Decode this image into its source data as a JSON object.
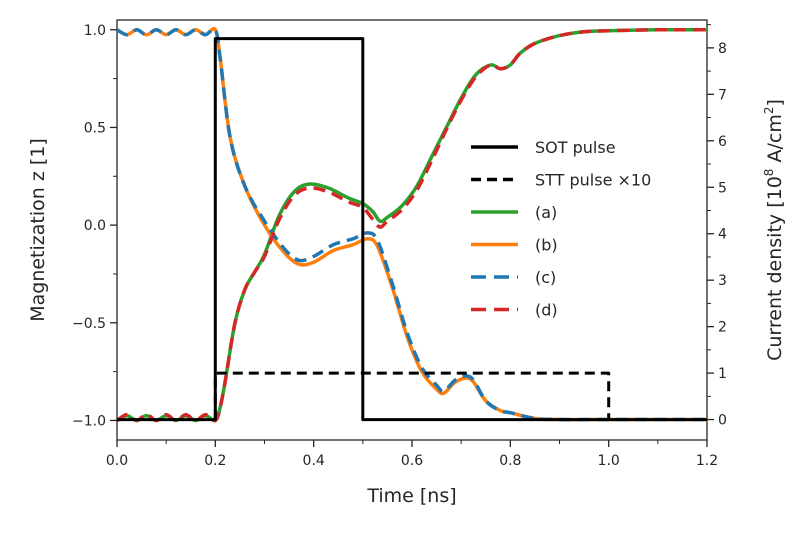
{
  "chart_data": {
    "type": "line",
    "xlabel": "Time [ns]",
    "ylabel_left": "Magnetization z [1]",
    "ylabel_right_prefix": "Current density [10",
    "ylabel_right_exp1": "8",
    "ylabel_right_mid": " A/cm",
    "ylabel_right_exp2": "2",
    "ylabel_right_suffix": "]",
    "xlim": [
      0.0,
      1.2
    ],
    "ylim_left": [
      -1.1,
      1.05
    ],
    "ylim_right": [
      -0.44,
      8.6
    ],
    "x_ticks": [
      "0.0",
      "0.2",
      "0.4",
      "0.6",
      "0.8",
      "1.0",
      "1.2"
    ],
    "x_tick_values": [
      0.0,
      0.2,
      0.4,
      0.6,
      0.8,
      1.0,
      1.2
    ],
    "y_left_ticks": [
      "1.0",
      "0.5",
      "0.0",
      "−0.5",
      "−1.0"
    ],
    "y_left_tick_values": [
      1.0,
      0.5,
      0.0,
      -0.5,
      -1.0
    ],
    "y_right_ticks": [
      "8",
      "7",
      "6",
      "5",
      "4",
      "3",
      "2",
      "1",
      "0"
    ],
    "y_right_tick_values": [
      8,
      7,
      6,
      5,
      4,
      3,
      2,
      1,
      0
    ],
    "grid": false,
    "legend_position": "center-right",
    "series": [
      {
        "name": "SOT pulse",
        "axis": "right",
        "color": "#000000",
        "style": "solid",
        "x": [
          0.0,
          0.2,
          0.2,
          0.5,
          0.5,
          1.2
        ],
        "y": [
          0,
          0,
          8.2,
          8.2,
          0,
          0
        ]
      },
      {
        "name": "STT pulse ×10",
        "axis": "right",
        "color": "#000000",
        "style": "dashed",
        "x": [
          0.2,
          0.2,
          1.0,
          1.0
        ],
        "y": [
          0,
          1.0,
          1.0,
          0
        ]
      },
      {
        "name": "(a)",
        "axis": "left",
        "color": "#2ca02c",
        "style": "solid",
        "x": [
          0.0,
          0.02,
          0.04,
          0.06,
          0.08,
          0.1,
          0.12,
          0.14,
          0.16,
          0.18,
          0.2,
          0.21,
          0.22,
          0.24,
          0.26,
          0.28,
          0.3,
          0.33,
          0.36,
          0.39,
          0.43,
          0.47,
          0.5,
          0.52,
          0.535,
          0.55,
          0.58,
          0.61,
          0.64,
          0.67,
          0.7,
          0.73,
          0.76,
          0.78,
          0.8,
          0.82,
          0.85,
          0.9,
          0.95,
          1.0,
          1.1,
          1.2
        ],
        "y": [
          -1.0,
          -0.975,
          -1.0,
          -0.975,
          -1.0,
          -0.975,
          -1.0,
          -0.975,
          -1.0,
          -0.975,
          -1.0,
          -0.93,
          -0.8,
          -0.5,
          -0.33,
          -0.24,
          -0.15,
          0.05,
          0.17,
          0.21,
          0.19,
          0.14,
          0.11,
          0.07,
          0.02,
          0.04,
          0.1,
          0.2,
          0.35,
          0.5,
          0.65,
          0.77,
          0.82,
          0.8,
          0.82,
          0.88,
          0.93,
          0.97,
          0.99,
          0.995,
          1.0,
          1.0
        ]
      },
      {
        "name": "(b)",
        "axis": "left",
        "color": "#ff7f0e",
        "style": "solid",
        "x": [
          0.0,
          0.02,
          0.04,
          0.06,
          0.08,
          0.1,
          0.12,
          0.14,
          0.16,
          0.18,
          0.2,
          0.21,
          0.23,
          0.26,
          0.3,
          0.34,
          0.37,
          0.4,
          0.44,
          0.48,
          0.51,
          0.53,
          0.56,
          0.59,
          0.62,
          0.65,
          0.665,
          0.69,
          0.72,
          0.75,
          0.78,
          0.8,
          0.85,
          0.9,
          1.0,
          1.2
        ],
        "y": [
          1.0,
          0.975,
          1.0,
          0.975,
          1.0,
          0.975,
          1.0,
          0.975,
          1.0,
          0.975,
          1.0,
          0.85,
          0.45,
          0.2,
          0.0,
          -0.14,
          -0.2,
          -0.19,
          -0.13,
          -0.1,
          -0.07,
          -0.11,
          -0.32,
          -0.57,
          -0.75,
          -0.84,
          -0.86,
          -0.8,
          -0.79,
          -0.9,
          -0.95,
          -0.96,
          -0.99,
          -0.995,
          -0.995,
          -0.995
        ]
      },
      {
        "name": "(c)",
        "axis": "left",
        "color": "#1f77b4",
        "style": "dashed",
        "x": [
          0.0,
          0.02,
          0.04,
          0.06,
          0.08,
          0.1,
          0.12,
          0.14,
          0.16,
          0.18,
          0.2,
          0.21,
          0.23,
          0.26,
          0.3,
          0.34,
          0.37,
          0.4,
          0.44,
          0.48,
          0.51,
          0.53,
          0.56,
          0.59,
          0.62,
          0.65,
          0.665,
          0.69,
          0.72,
          0.75,
          0.78,
          0.8,
          0.85,
          0.9,
          1.0,
          1.2
        ],
        "y": [
          1.0,
          0.975,
          1.0,
          0.975,
          1.0,
          0.975,
          1.0,
          0.975,
          1.0,
          0.975,
          1.0,
          0.85,
          0.45,
          0.2,
          0.02,
          -0.12,
          -0.18,
          -0.16,
          -0.1,
          -0.07,
          -0.04,
          -0.08,
          -0.3,
          -0.55,
          -0.73,
          -0.82,
          -0.85,
          -0.79,
          -0.78,
          -0.9,
          -0.95,
          -0.96,
          -0.99,
          -0.995,
          -0.995,
          -0.995
        ]
      },
      {
        "name": "(d)",
        "axis": "left",
        "color": "#d62728",
        "style": "dashed",
        "x": [
          0.0,
          0.02,
          0.04,
          0.06,
          0.08,
          0.1,
          0.12,
          0.14,
          0.16,
          0.18,
          0.2,
          0.21,
          0.22,
          0.24,
          0.26,
          0.28,
          0.3,
          0.33,
          0.36,
          0.39,
          0.43,
          0.47,
          0.5,
          0.52,
          0.535,
          0.55,
          0.58,
          0.61,
          0.64,
          0.67,
          0.7,
          0.73,
          0.76,
          0.78,
          0.8,
          0.82,
          0.85,
          0.9,
          0.95,
          1.0,
          1.1,
          1.2
        ],
        "y": [
          -1.0,
          -0.97,
          -1.0,
          -0.97,
          -1.0,
          -0.97,
          -1.0,
          -0.97,
          -1.0,
          -0.97,
          -1.0,
          -0.93,
          -0.8,
          -0.5,
          -0.33,
          -0.24,
          -0.16,
          0.03,
          0.15,
          0.19,
          0.17,
          0.12,
          0.09,
          0.03,
          -0.01,
          0.02,
          0.08,
          0.18,
          0.33,
          0.49,
          0.64,
          0.76,
          0.82,
          0.8,
          0.82,
          0.88,
          0.93,
          0.97,
          0.99,
          0.995,
          1.0,
          1.0
        ]
      }
    ]
  }
}
